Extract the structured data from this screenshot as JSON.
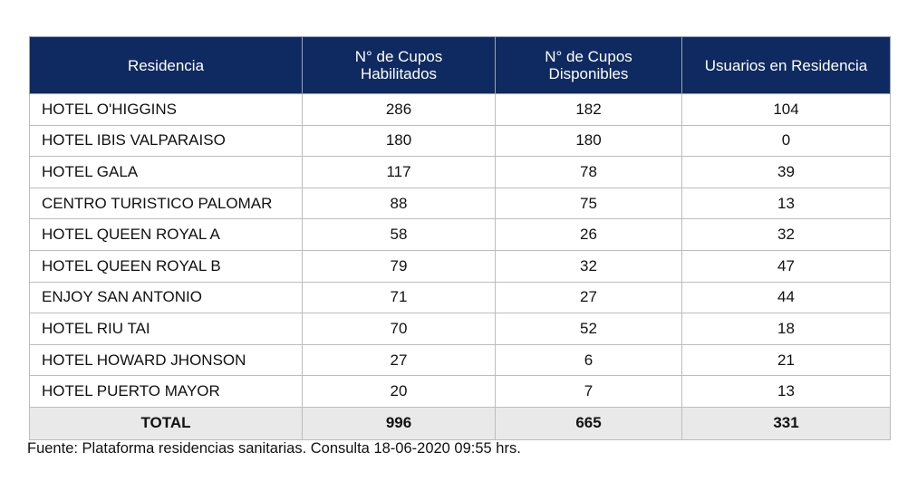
{
  "table": {
    "headers": [
      "Residencia",
      "N° de Cupos Habilitados",
      "N° de Cupos Disponibles",
      "Usuarios en Residencia"
    ],
    "header_lines": [
      [
        "Residencia"
      ],
      [
        "N° de Cupos",
        "Habilitados"
      ],
      [
        "N° de Cupos",
        "Disponibles"
      ],
      [
        "Usuarios en Residencia"
      ]
    ],
    "rows": [
      [
        "HOTEL O'HIGGINS",
        "286",
        "182",
        "104"
      ],
      [
        "HOTEL IBIS VALPARAISO",
        "180",
        "180",
        "0"
      ],
      [
        "HOTEL GALA",
        "117",
        "78",
        "39"
      ],
      [
        "CENTRO TURISTICO PALOMAR",
        "88",
        "75",
        "13"
      ],
      [
        "HOTEL QUEEN ROYAL A",
        "58",
        "26",
        "32"
      ],
      [
        "HOTEL QUEEN ROYAL B",
        "79",
        "32",
        "47"
      ],
      [
        "ENJOY SAN ANTONIO",
        "71",
        "27",
        "44"
      ],
      [
        "HOTEL RIU TAI",
        "70",
        "52",
        "18"
      ],
      [
        "HOTEL HOWARD JHONSON",
        "27",
        "6",
        "21"
      ],
      [
        "HOTEL PUERTO MAYOR",
        "20",
        "7",
        "13"
      ]
    ],
    "total": [
      "TOTAL",
      "996",
      "665",
      "331"
    ]
  },
  "source": "Fuente: Plataforma residencias sanitarias. Consulta 18-06-2020 09:55 hrs.",
  "colors": {
    "header_bg": "#0f2a60",
    "header_text": "#ffffff",
    "total_bg": "#e9e9e9",
    "border": "#bdbdbd"
  }
}
